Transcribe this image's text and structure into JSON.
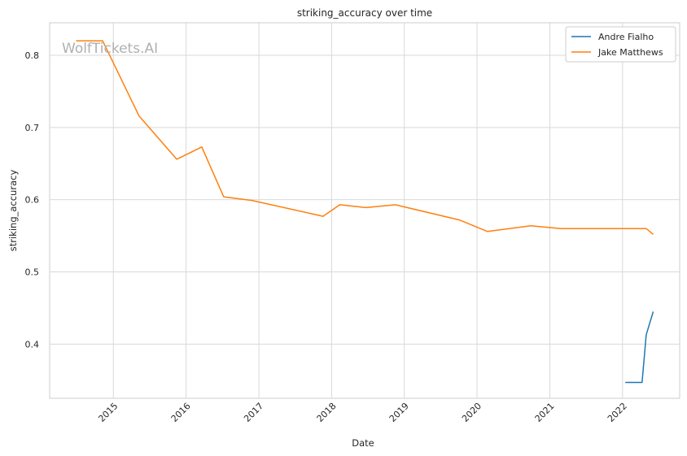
{
  "watermark": "WolfTickets.AI",
  "chart_data": {
    "type": "line",
    "title": "striking_accuracy over time",
    "xlabel": "Date",
    "ylabel": "striking_accuracy",
    "x_ticks": [
      "2015",
      "2016",
      "2017",
      "2018",
      "2019",
      "2020",
      "2021",
      "2022"
    ],
    "y_ticks": [
      "0.4",
      "0.5",
      "0.6",
      "0.7",
      "0.8"
    ],
    "xlim": [
      "2014-02-15",
      "2022-10-15"
    ],
    "ylim": [
      0.325,
      0.845
    ],
    "grid": true,
    "legend_position": "top-right",
    "series": [
      {
        "name": "Andre Fialho",
        "color": "#1f77b4",
        "points": [
          [
            "2022-01-15",
            0.347
          ],
          [
            "2022-04-09",
            0.347
          ],
          [
            "2022-04-30",
            0.413
          ],
          [
            "2022-06-04",
            0.445
          ]
        ]
      },
      {
        "name": "Jake Matthews",
        "color": "#ff7f0e",
        "points": [
          [
            "2014-06-28",
            0.82
          ],
          [
            "2014-11-08",
            0.82
          ],
          [
            "2015-05-10",
            0.716
          ],
          [
            "2015-11-15",
            0.656
          ],
          [
            "2016-03-20",
            0.673
          ],
          [
            "2016-07-08",
            0.604
          ],
          [
            "2016-11-27",
            0.599
          ],
          [
            "2017-11-19",
            0.577
          ],
          [
            "2018-02-11",
            0.593
          ],
          [
            "2018-06-23",
            0.589
          ],
          [
            "2018-11-17",
            0.593
          ],
          [
            "2019-10-05",
            0.572
          ],
          [
            "2020-02-23",
            0.556
          ],
          [
            "2020-09-27",
            0.564
          ],
          [
            "2021-02-27",
            0.56
          ],
          [
            "2022-04-30",
            0.56
          ],
          [
            "2022-06-04",
            0.552
          ]
        ]
      }
    ]
  }
}
